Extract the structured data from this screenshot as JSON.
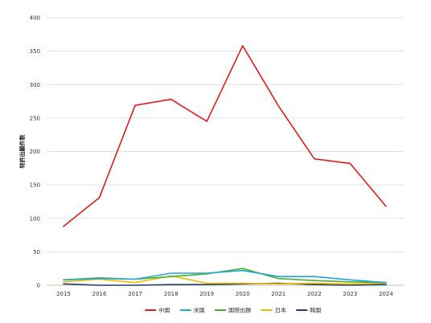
{
  "chart_data": {
    "type": "line",
    "title": "",
    "xlabel": "",
    "ylabel": "特許出願件数",
    "categories": [
      "2015",
      "2016",
      "2017",
      "2018",
      "2019",
      "2020",
      "2021",
      "2022",
      "2023",
      "2024"
    ],
    "ylim": [
      0,
      400
    ],
    "yticks": [
      0,
      50,
      100,
      150,
      200,
      250,
      300,
      350,
      400
    ],
    "grid": true,
    "legend_position": "bottom",
    "series": [
      {
        "name": "中国",
        "color": "#e31a1c",
        "values": [
          88,
          131,
          269,
          278,
          245,
          358,
          268,
          189,
          182,
          118
        ]
      },
      {
        "name": "米国",
        "color": "#1fa7e0",
        "values": [
          8,
          10,
          9,
          18,
          18,
          22,
          13,
          13,
          8,
          4
        ]
      },
      {
        "name": "国際出願",
        "color": "#4caf2c",
        "values": [
          8,
          11,
          9,
          13,
          17,
          25,
          10,
          7,
          5,
          4
        ]
      },
      {
        "name": "日本",
        "color": "#f5b800",
        "values": [
          5,
          9,
          4,
          14,
          3,
          3,
          2,
          3,
          2,
          3
        ]
      },
      {
        "name": "韓国",
        "color": "#1f3f66",
        "values": [
          2,
          0,
          0,
          1,
          1,
          2,
          3,
          1,
          0,
          1
        ]
      }
    ]
  }
}
